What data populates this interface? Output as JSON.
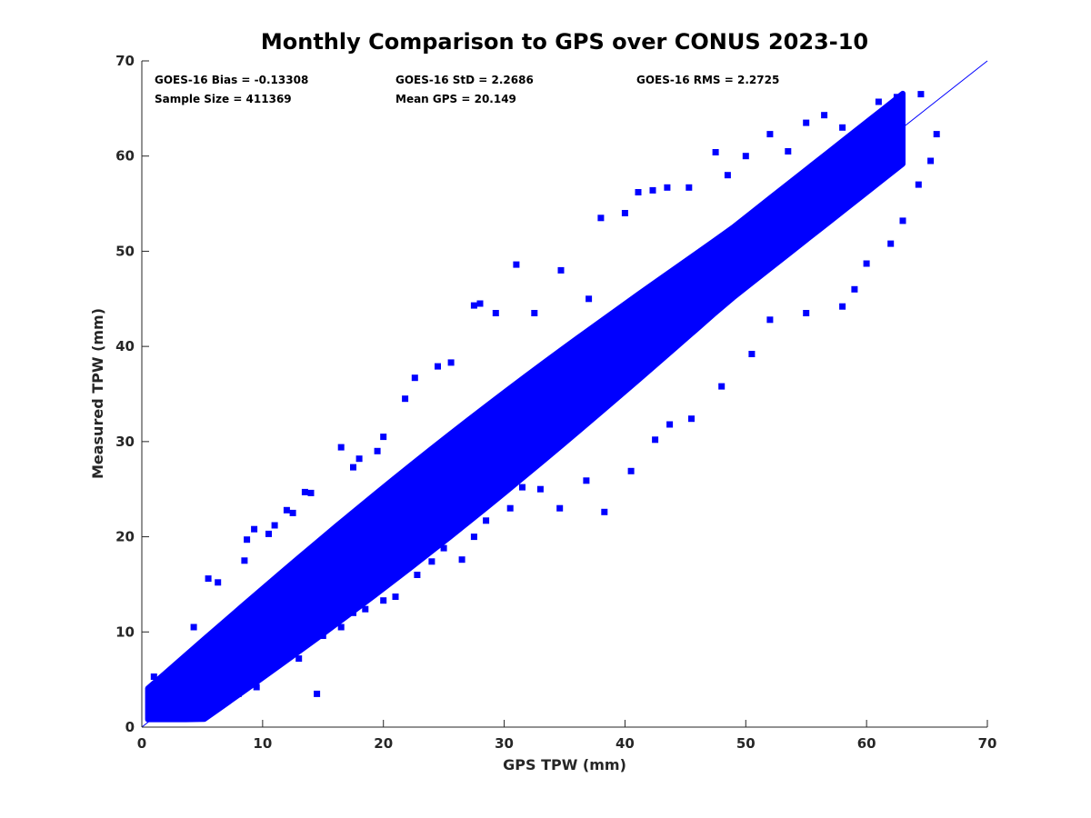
{
  "colors": {
    "marker": "#0000ff",
    "axis": "#262626",
    "background": "#ffffff"
  },
  "stats": {
    "bias": "GOES-16 Bias = -0.13308",
    "std": "GOES-16 StD = 2.2686",
    "rms": "GOES-16 RMS = 2.2725",
    "sample_size": "Sample Size = 411369",
    "mean_gps": "Mean GPS = 20.149"
  },
  "chart_data": {
    "type": "scatter",
    "title": "Monthly Comparison to GPS over CONUS 2023-10",
    "xlabel": "GPS TPW (mm)",
    "ylabel": "Measured TPW (mm)",
    "xlim": [
      0,
      70
    ],
    "ylim": [
      0,
      70
    ],
    "xticks": [
      0,
      10,
      20,
      30,
      40,
      50,
      60,
      70
    ],
    "yticks": [
      0,
      10,
      20,
      30,
      40,
      50,
      60,
      70
    ],
    "grid": false,
    "reference_line": {
      "from": [
        0,
        0
      ],
      "to": [
        70,
        70
      ]
    },
    "marker": "square",
    "series": [
      {
        "density_band": {
          "x_range": [
            0.5,
            63
          ],
          "center_offset": -0.13,
          "core_halfwidth_mm": [
            1.5,
            3.2
          ],
          "sample_size": 411369
        },
        "points": [
          [
            1.0,
            5.3
          ],
          [
            1.5,
            4.8
          ],
          [
            2.0,
            1.5
          ],
          [
            3.0,
            1.2
          ],
          [
            4.3,
            10.5
          ],
          [
            5.5,
            15.6
          ],
          [
            6.3,
            15.2
          ],
          [
            8.5,
            17.5
          ],
          [
            8.7,
            19.7
          ],
          [
            9.3,
            20.8
          ],
          [
            10.5,
            20.3
          ],
          [
            11.0,
            21.2
          ],
          [
            12.0,
            22.8
          ],
          [
            12.5,
            22.5
          ],
          [
            13.5,
            24.7
          ],
          [
            14.0,
            24.6
          ],
          [
            16.5,
            29.4
          ],
          [
            17.5,
            27.3
          ],
          [
            18.0,
            28.2
          ],
          [
            19.5,
            29.0
          ],
          [
            20.0,
            30.5
          ],
          [
            21.8,
            34.5
          ],
          [
            22.6,
            36.7
          ],
          [
            24.5,
            37.9
          ],
          [
            25.6,
            38.3
          ],
          [
            27.5,
            44.3
          ],
          [
            28.0,
            44.5
          ],
          [
            29.3,
            43.5
          ],
          [
            31.0,
            48.6
          ],
          [
            32.5,
            43.5
          ],
          [
            34.7,
            48.0
          ],
          [
            37.0,
            45.0
          ],
          [
            38.0,
            53.5
          ],
          [
            40.0,
            54.0
          ],
          [
            41.1,
            56.2
          ],
          [
            42.3,
            56.4
          ],
          [
            43.5,
            56.7
          ],
          [
            45.3,
            56.7
          ],
          [
            47.5,
            60.4
          ],
          [
            48.5,
            58.0
          ],
          [
            50.0,
            60.0
          ],
          [
            52.0,
            62.3
          ],
          [
            53.5,
            60.5
          ],
          [
            55.0,
            63.5
          ],
          [
            56.5,
            64.3
          ],
          [
            58.0,
            63.0
          ],
          [
            60.0,
            62.8
          ],
          [
            61.0,
            65.7
          ],
          [
            62.5,
            66.2
          ],
          [
            64.5,
            66.5
          ],
          [
            65.8,
            62.3
          ],
          [
            65.3,
            59.5
          ],
          [
            64.3,
            57.0
          ],
          [
            63.0,
            53.2
          ],
          [
            62.0,
            50.8
          ],
          [
            60.0,
            48.7
          ],
          [
            59.0,
            46.0
          ],
          [
            58.0,
            44.2
          ],
          [
            55.0,
            43.5
          ],
          [
            52.0,
            42.8
          ],
          [
            50.5,
            39.2
          ],
          [
            48.0,
            35.8
          ],
          [
            45.5,
            32.4
          ],
          [
            43.7,
            31.8
          ],
          [
            42.5,
            30.2
          ],
          [
            40.5,
            26.9
          ],
          [
            38.3,
            22.6
          ],
          [
            36.8,
            25.9
          ],
          [
            34.6,
            23.0
          ],
          [
            33.0,
            25.0
          ],
          [
            31.5,
            25.2
          ],
          [
            30.5,
            23.0
          ],
          [
            28.5,
            21.7
          ],
          [
            27.5,
            20.0
          ],
          [
            26.5,
            17.6
          ],
          [
            25.0,
            18.8
          ],
          [
            24.0,
            17.4
          ],
          [
            22.8,
            16.0
          ],
          [
            21.0,
            13.7
          ],
          [
            20.0,
            13.3
          ],
          [
            18.5,
            12.4
          ],
          [
            17.5,
            12.0
          ],
          [
            16.5,
            10.5
          ],
          [
            15.0,
            9.6
          ],
          [
            14.5,
            3.5
          ],
          [
            13.0,
            7.2
          ],
          [
            11.5,
            6.8
          ],
          [
            10.5,
            6.4
          ],
          [
            9.5,
            4.2
          ],
          [
            8.0,
            3.5
          ],
          [
            6.5,
            2.9
          ],
          [
            5.0,
            2.0
          ],
          [
            3.5,
            1.6
          ],
          [
            2.5,
            1.3
          ],
          [
            1.2,
            3.8
          ],
          [
            0.8,
            2.4
          ]
        ]
      }
    ]
  }
}
